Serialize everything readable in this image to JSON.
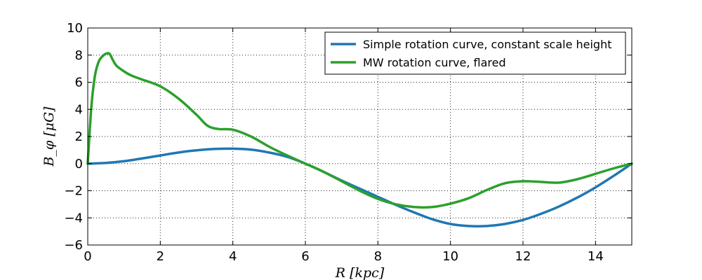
{
  "chart_data": {
    "type": "line",
    "xlabel": "R [kpc]",
    "ylabel": "B_φ [μG]",
    "xlim": [
      0,
      15
    ],
    "ylim": [
      -6,
      10
    ],
    "xticks": [
      0,
      2,
      4,
      6,
      8,
      10,
      12,
      14
    ],
    "yticks": [
      -6,
      -4,
      -2,
      0,
      2,
      4,
      6,
      8,
      10
    ],
    "xtick_labels": [
      "0",
      "2",
      "4",
      "6",
      "8",
      "10",
      "12",
      "14"
    ],
    "ytick_labels": [
      "−6",
      "−4",
      "−2",
      "0",
      "2",
      "4",
      "6",
      "8",
      "10"
    ],
    "grid": true,
    "legend_position": "top-right",
    "series": [
      {
        "name": "Simple rotation curve, constant scale height",
        "color": "#1f77b4",
        "x": [
          0,
          0.5,
          1,
          1.5,
          2,
          2.5,
          3,
          3.5,
          4,
          4.5,
          5,
          5.5,
          6,
          6.5,
          7,
          7.5,
          8,
          8.5,
          9,
          9.5,
          10,
          10.5,
          11,
          11.5,
          12,
          12.5,
          13,
          13.5,
          14,
          14.5,
          15
        ],
        "y": [
          0,
          0.05,
          0.18,
          0.38,
          0.6,
          0.82,
          0.98,
          1.08,
          1.1,
          1.03,
          0.82,
          0.5,
          0.0,
          -0.6,
          -1.25,
          -1.85,
          -2.45,
          -3.05,
          -3.6,
          -4.1,
          -4.45,
          -4.6,
          -4.6,
          -4.45,
          -4.15,
          -3.7,
          -3.15,
          -2.5,
          -1.75,
          -0.9,
          0
        ]
      },
      {
        "name": "MW rotation curve, flared",
        "color": "#2ca02c",
        "x": [
          0,
          0.1,
          0.2,
          0.3,
          0.4,
          0.5,
          0.6,
          0.7,
          0.8,
          1,
          1.2,
          1.5,
          2,
          2.5,
          3,
          3.3,
          3.6,
          4,
          4.5,
          5,
          5.5,
          6,
          6.5,
          7,
          7.5,
          8,
          8.5,
          9,
          9.5,
          10,
          10.5,
          11,
          11.5,
          12,
          12.5,
          13,
          13.5,
          14,
          14.5,
          15
        ],
        "y": [
          0,
          4.2,
          6.5,
          7.5,
          7.9,
          8.1,
          8.1,
          7.6,
          7.2,
          6.8,
          6.5,
          6.2,
          5.7,
          4.8,
          3.6,
          2.8,
          2.55,
          2.5,
          2.0,
          1.25,
          0.6,
          0.0,
          -0.6,
          -1.3,
          -2.0,
          -2.6,
          -3.0,
          -3.2,
          -3.2,
          -2.95,
          -2.55,
          -1.95,
          -1.45,
          -1.3,
          -1.35,
          -1.4,
          -1.15,
          -0.75,
          -0.35,
          0
        ]
      }
    ]
  }
}
